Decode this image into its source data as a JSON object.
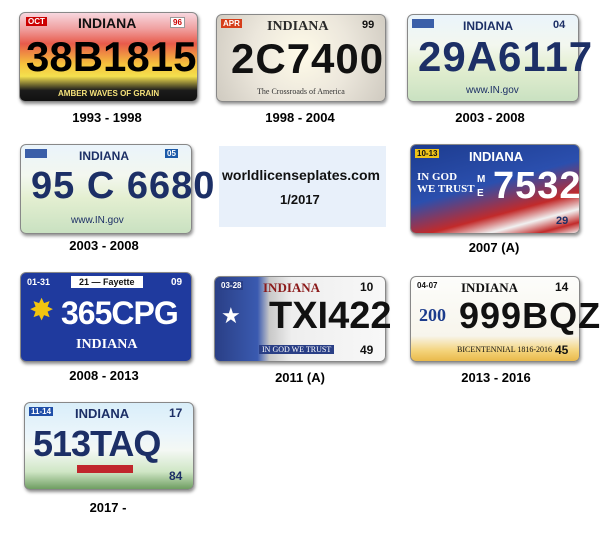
{
  "site": {
    "name": "worldlicenseplates.com",
    "date": "1/2017"
  },
  "plates": [
    {
      "caption": "1993 - 1998",
      "state": "INDIANA",
      "number": "38B1815",
      "slogan": "AMBER WAVES OF GRAIN",
      "sticker": "96"
    },
    {
      "caption": "1998 - 2004",
      "state": "INDIANA",
      "number": "2C7400",
      "slogan": "The Crossroads of America",
      "sticker": "APR",
      "year": "99"
    },
    {
      "caption": "2003 - 2008",
      "state": "INDIANA",
      "number": "29A6117",
      "slogan": "www.IN.gov",
      "year": "04"
    },
    {
      "caption": "2003 - 2008",
      "state": "INDIANA",
      "number": "95 C 6680",
      "slogan": "www.IN.gov",
      "year": "05"
    },
    {
      "caption": "2007 (A)",
      "state": "INDIANA",
      "number": "7532",
      "slogan": "IN GOD WE TRUST",
      "prefix": "M E",
      "sticker": "10-13",
      "year": "29"
    },
    {
      "caption": "2008 - 2013",
      "state": "INDIANA",
      "number": "365CPG",
      "county": "21 — Fayette",
      "sticker": "01-31",
      "year": "09"
    },
    {
      "caption": "2011 (A)",
      "state": "INDIANA",
      "number": "TXI422",
      "slogan": "IN GOD WE TRUST",
      "sticker": "03-28",
      "year": "10",
      "county_no": "49"
    },
    {
      "caption": "2013 - 2016",
      "state": "INDIANA",
      "number": "999BQZ",
      "slogan": "BICENTENNIAL 1816-2016",
      "sticker": "04-07",
      "year": "14",
      "county_no": "45",
      "badge": "200"
    },
    {
      "caption": "2017 -",
      "state": "INDIANA",
      "number": "513TAQ",
      "sticker": "11-14",
      "year": "17",
      "county_no": "84"
    }
  ]
}
